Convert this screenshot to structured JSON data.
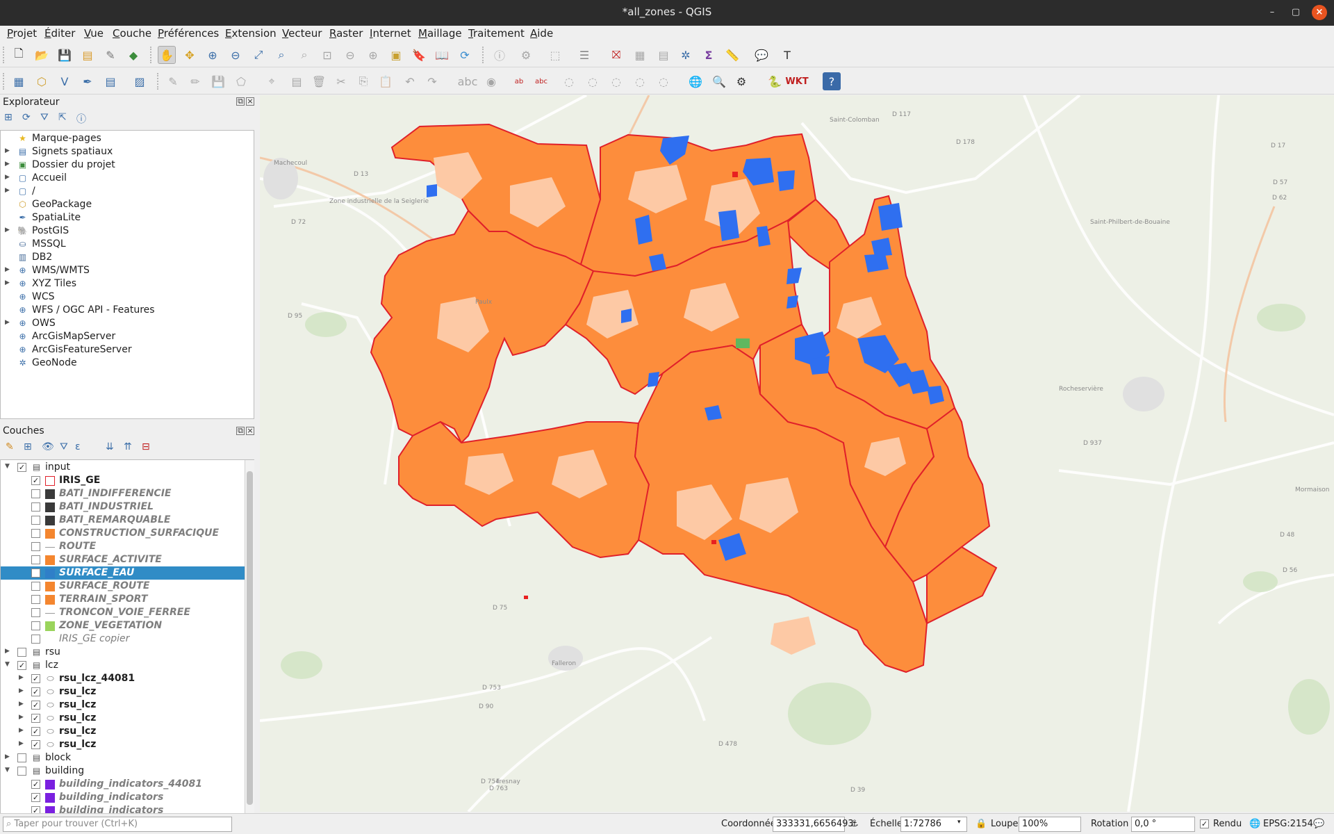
{
  "window": {
    "title": "*all_zones - QGIS",
    "minimize": "–",
    "restore": "▢",
    "close": "×"
  },
  "menu": [
    "Projet",
    "Éditer",
    "Vue",
    "Couche",
    "Préférences",
    "Extension",
    "Vecteur",
    "Raster",
    "Internet",
    "Maillage",
    "Traitement",
    "Aide"
  ],
  "explorer": {
    "title": "Explorateur",
    "items": [
      {
        "label": "Marque-pages",
        "icon": "star-icon",
        "expandable": false
      },
      {
        "label": "Signets spatiaux",
        "icon": "bookmark-icon",
        "expandable": true
      },
      {
        "label": "Dossier du projet",
        "icon": "project-folder-icon",
        "expandable": true
      },
      {
        "label": "Accueil",
        "icon": "folder-icon",
        "expandable": true
      },
      {
        "label": "/",
        "icon": "folder-icon",
        "expandable": true
      },
      {
        "label": "GeoPackage",
        "icon": "geopackage-icon",
        "expandable": false
      },
      {
        "label": "SpatiaLite",
        "icon": "spatialite-icon",
        "expandable": false
      },
      {
        "label": "PostGIS",
        "icon": "postgis-icon",
        "expandable": true
      },
      {
        "label": "MSSQL",
        "icon": "mssql-icon",
        "expandable": false
      },
      {
        "label": "DB2",
        "icon": "db2-icon",
        "expandable": false
      },
      {
        "label": "WMS/WMTS",
        "icon": "globe-icon",
        "expandable": true
      },
      {
        "label": "XYZ Tiles",
        "icon": "globe-icon",
        "expandable": true
      },
      {
        "label": "WCS",
        "icon": "globe-icon",
        "expandable": false
      },
      {
        "label": "WFS / OGC API - Features",
        "icon": "wfs-icon",
        "expandable": false
      },
      {
        "label": "OWS",
        "icon": "globe-icon",
        "expandable": true
      },
      {
        "label": "ArcGisMapServer",
        "icon": "globe-icon",
        "expandable": false
      },
      {
        "label": "ArcGisFeatureServer",
        "icon": "globe-icon",
        "expandable": false
      },
      {
        "label": "GeoNode",
        "icon": "geonode-icon",
        "expandable": false
      }
    ]
  },
  "layers": {
    "title": "Couches",
    "rows": [
      {
        "label": "input",
        "level": 0,
        "type": "group",
        "expanded": true,
        "checked": true,
        "style": "normal"
      },
      {
        "label": "IRIS_GE",
        "level": 1,
        "type": "layer",
        "checked": true,
        "swatch": "#ffffff",
        "border": "#e0202a",
        "style": "bold"
      },
      {
        "label": "BATI_INDIFFERENCIE",
        "level": 1,
        "type": "layer",
        "checked": false,
        "swatch": "#3a3a3a",
        "style": "gi"
      },
      {
        "label": "BATI_INDUSTRIEL",
        "level": 1,
        "type": "layer",
        "checked": false,
        "swatch": "#3a3a3a",
        "style": "gi"
      },
      {
        "label": "BATI_REMARQUABLE",
        "level": 1,
        "type": "layer",
        "checked": false,
        "swatch": "#3a3a3a",
        "style": "gi"
      },
      {
        "label": "CONSTRUCTION_SURFACIQUE",
        "level": 1,
        "type": "layer",
        "checked": false,
        "swatch": "#f4862f",
        "style": "gi"
      },
      {
        "label": "ROUTE",
        "level": 1,
        "type": "layer",
        "checked": false,
        "swatch": "line",
        "style": "gi"
      },
      {
        "label": "SURFACE_ACTIVITE",
        "level": 1,
        "type": "layer",
        "checked": false,
        "swatch": "#f4862f",
        "style": "gi"
      },
      {
        "label": "SURFACE_EAU",
        "level": 1,
        "type": "layer",
        "checked": false,
        "swatch": "#2f7fc8",
        "style": "gi",
        "selected": true
      },
      {
        "label": "SURFACE_ROUTE",
        "level": 1,
        "type": "layer",
        "checked": false,
        "swatch": "#f4862f",
        "style": "gi"
      },
      {
        "label": "TERRAIN_SPORT",
        "level": 1,
        "type": "layer",
        "checked": false,
        "swatch": "#f4862f",
        "style": "gi"
      },
      {
        "label": "TRONCON_VOIE_FERREE",
        "level": 1,
        "type": "layer",
        "checked": false,
        "swatch": "line",
        "style": "gi"
      },
      {
        "label": "ZONE_VEGETATION",
        "level": 1,
        "type": "layer",
        "checked": false,
        "swatch": "#9ad45c",
        "style": "gi"
      },
      {
        "label": "IRIS_GE copier",
        "level": 1,
        "type": "layer",
        "checked": false,
        "swatch": "none",
        "style": "it"
      },
      {
        "label": "rsu",
        "level": 0,
        "type": "group",
        "expanded": false,
        "checked": false,
        "style": "normal"
      },
      {
        "label": "lcz",
        "level": 0,
        "type": "group",
        "expanded": true,
        "checked": true,
        "style": "normal"
      },
      {
        "label": "rsu_lcz_44081",
        "level": 1,
        "type": "sublayer",
        "checked": true,
        "style": "bold"
      },
      {
        "label": "rsu_lcz",
        "level": 1,
        "type": "sublayer",
        "checked": true,
        "style": "bold"
      },
      {
        "label": "rsu_lcz",
        "level": 1,
        "type": "sublayer",
        "checked": true,
        "style": "bold"
      },
      {
        "label": "rsu_lcz",
        "level": 1,
        "type": "sublayer",
        "checked": true,
        "style": "bold"
      },
      {
        "label": "rsu_lcz",
        "level": 1,
        "type": "sublayer",
        "checked": true,
        "style": "bold"
      },
      {
        "label": "rsu_lcz",
        "level": 1,
        "type": "sublayer",
        "checked": true,
        "style": "bold"
      },
      {
        "label": "block",
        "level": 0,
        "type": "group",
        "expanded": false,
        "checked": false,
        "style": "normal"
      },
      {
        "label": "building",
        "level": 0,
        "type": "group",
        "expanded": true,
        "checked": false,
        "style": "normal"
      },
      {
        "label": "building_indicators_44081",
        "level": 1,
        "type": "layer",
        "checked": true,
        "swatch": "#7a20e0",
        "style": "gi"
      },
      {
        "label": "building_indicators",
        "level": 1,
        "type": "layer",
        "checked": true,
        "swatch": "#7a20e0",
        "style": "gi"
      },
      {
        "label": "building_indicators",
        "level": 1,
        "type": "layer",
        "checked": true,
        "swatch": "#7a20e0",
        "style": "gi"
      }
    ]
  },
  "search": {
    "placeholder": "Taper pour trouver (Ctrl+K)"
  },
  "status": {
    "coord_label": "Coordonnée",
    "coord_value": "333331,6656493",
    "scale_label": "Échelle",
    "scale_value": "1:72786",
    "magnifier_label": "Loupe",
    "magnifier_value": "100%",
    "rotation_label": "Rotation",
    "rotation_value": "0,0 °",
    "render_label": "Rendu",
    "render_checked": true,
    "crs": "EPSG:2154"
  },
  "map_labels": [
    "Saint-Colomban",
    "Machecoul",
    "Paulx",
    "Fresnay",
    "Falleron",
    "Zone industrielle de la Seiglerie",
    "Saint-Philbert-de-Bouaine",
    "Rocheservière",
    "Mormaison",
    "D 117",
    "D 13",
    "D 95",
    "D 72",
    "D 763",
    "D 753",
    "D 75",
    "D 178",
    "D 937",
    "D 57",
    "D 17",
    "D 62",
    "D 48",
    "D 56",
    "D 754",
    "D 478",
    "D 39",
    "D 90"
  ],
  "colors": {
    "zone": "#fd8d3c",
    "zone_light": "#fdc9a5",
    "zone_border": "#e0202a",
    "water": "#2f6ff0",
    "map_bg": "#edf0e6",
    "selected_row": "#308cc6",
    "titlebar": "#2c2c2c",
    "close": "#e95420"
  }
}
